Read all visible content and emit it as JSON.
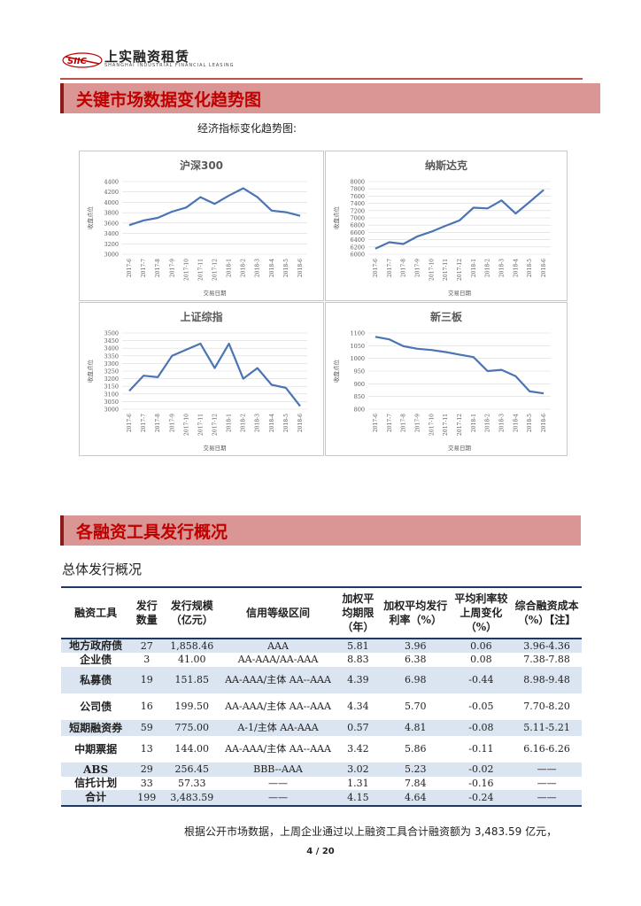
{
  "header": {
    "logo_mark": "SIIC",
    "company_name": "上实融资租赁",
    "company_english": "SHANGHAI INDUSTRIAL FINANCIAL LEASING"
  },
  "section1": {
    "title": "关键市场数据变化趋势图",
    "subtitle": "经济指标变化趋势图:"
  },
  "chart_data": [
    {
      "type": "line",
      "title": "沪深300",
      "xlabel": "交易日期",
      "ylabel": "收盘点位",
      "categories": [
        "2017-6",
        "2017-7",
        "2017-8",
        "2017-9",
        "2017-10",
        "2017-11",
        "2017-12",
        "2018-1",
        "2018-2",
        "2018-3",
        "2018-4",
        "2018-5",
        "2018-6"
      ],
      "values": [
        3560,
        3650,
        3700,
        3820,
        3900,
        4100,
        3970,
        4130,
        4270,
        4100,
        3840,
        3810,
        3740
      ],
      "yticks": [
        "3000",
        "3200",
        "3400",
        "3600",
        "3800",
        "4000",
        "4200",
        "4400"
      ],
      "ylim": [
        3000,
        4400
      ],
      "color": "#4a74b4"
    },
    {
      "type": "line",
      "title": "纳斯达克",
      "xlabel": "交易日期",
      "ylabel": "收盘点位",
      "categories": [
        "2017-6",
        "2017-7",
        "2017-8",
        "2017-9",
        "2017-10",
        "2017-11",
        "2017-12",
        "2018-1",
        "2018-2",
        "2018-3",
        "2018-4",
        "2018-5",
        "2018-6"
      ],
      "values": [
        6150,
        6330,
        6280,
        6490,
        6620,
        6780,
        6930,
        7280,
        7260,
        7480,
        7120,
        7440,
        7770
      ],
      "yticks": [
        "6000",
        "6200",
        "6400",
        "6600",
        "6800",
        "7000",
        "7200",
        "7400",
        "7600",
        "7800",
        "8000"
      ],
      "ylim": [
        6000,
        8000
      ],
      "color": "#4a74b4"
    },
    {
      "type": "line",
      "title": "上证综指",
      "xlabel": "交易日期",
      "ylabel": "收盘点位",
      "categories": [
        "2017-6",
        "2017-7",
        "2017-8",
        "2017-9",
        "2017-10",
        "2017-11",
        "2017-12",
        "2018-1",
        "2018-2",
        "2018-3",
        "2018-4",
        "2018-5",
        "2018-6"
      ],
      "values": [
        3120,
        3220,
        3210,
        3350,
        3390,
        3430,
        3270,
        3430,
        3200,
        3270,
        3160,
        3140,
        3020
      ],
      "yticks": [
        "3000",
        "3050",
        "3100",
        "3150",
        "3200",
        "3250",
        "3300",
        "3350",
        "3400",
        "3450",
        "3500"
      ],
      "ylim": [
        3000,
        3500
      ],
      "color": "#4a74b4"
    },
    {
      "type": "line",
      "title": "新三板",
      "xlabel": "交易日期",
      "ylabel": "收盘点位",
      "categories": [
        "2017-6",
        "2017-7",
        "2017-8",
        "2017-9",
        "2017-10",
        "2017-11",
        "2017-12",
        "2018-1",
        "2018-2",
        "2018-3",
        "2018-4",
        "2018-5",
        "2018-6"
      ],
      "values": [
        1085,
        1075,
        1048,
        1038,
        1033,
        1025,
        1015,
        1005,
        950,
        955,
        930,
        870,
        862
      ],
      "yticks": [
        "800",
        "850",
        "900",
        "950",
        "1000",
        "1050",
        "1100"
      ],
      "ylim": [
        800,
        1100
      ],
      "color": "#4a74b4"
    }
  ],
  "section2": {
    "title": "各融资工具发行概况",
    "subtitle": "总体发行概况"
  },
  "table": {
    "headers": [
      "融资工具",
      "发行数量",
      "发行规模（亿元）",
      "信用等级区间",
      "加权平均期限（年）",
      "加权平均发行利率（%）",
      "平均利率较上周变化（%）",
      "综合融资成本（%）【注】"
    ],
    "rows": [
      {
        "name": "地方政府债",
        "count": "27",
        "scale": "1,858.46",
        "rating": "AAA",
        "term": "5.81",
        "rate": "3.96",
        "change": "0.06",
        "cost": "3.96-4.36"
      },
      {
        "name": "企业债",
        "count": "3",
        "scale": "41.00",
        "rating": "AA-AAA/AA-AAA",
        "term": "8.83",
        "rate": "6.38",
        "change": "0.08",
        "cost": "7.38-7.88"
      },
      {
        "name": "私募债",
        "count": "19",
        "scale": "151.85",
        "rating": "AA-AAA/主体 AA--AAA",
        "term": "4.39",
        "rate": "6.98",
        "change": "-0.44",
        "cost": "8.98-9.48"
      },
      {
        "name": "公司债",
        "count": "16",
        "scale": "199.50",
        "rating": "AA-AAA/主体 AA--AAA",
        "term": "4.34",
        "rate": "5.70",
        "change": "-0.05",
        "cost": "7.70-8.20"
      },
      {
        "name": "短期融资券",
        "count": "59",
        "scale": "775.00",
        "rating": "A-1/主体 AA-AAA",
        "term": "0.57",
        "rate": "4.81",
        "change": "-0.08",
        "cost": "5.11-5.21"
      },
      {
        "name": "中期票据",
        "count": "13",
        "scale": "144.00",
        "rating": "AA-AAA/主体 AA--AAA",
        "term": "3.42",
        "rate": "5.86",
        "change": "-0.11",
        "cost": "6.16-6.26"
      },
      {
        "name": "ABS",
        "count": "29",
        "scale": "256.45",
        "rating": "BBB--AAA",
        "term": "3.02",
        "rate": "5.23",
        "change": "-0.02",
        "cost": "——"
      },
      {
        "name": "信托计划",
        "count": "33",
        "scale": "57.33",
        "rating": "——",
        "term": "1.31",
        "rate": "7.84",
        "change": "-0.16",
        "cost": "——"
      },
      {
        "name": "合计",
        "count": "199",
        "scale": "3,483.59",
        "rating": "——",
        "term": "4.15",
        "rate": "4.64",
        "change": "-0.24",
        "cost": "——"
      }
    ]
  },
  "footnote": "根据公开市场数据，上周企业通过以上融资工具合计融资额为 3,483.59 亿元，",
  "page_number": "4 / 20"
}
